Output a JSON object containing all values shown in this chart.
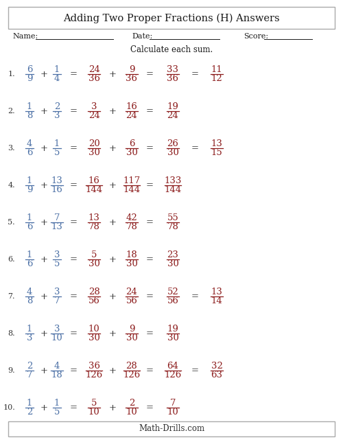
{
  "title": "Adding Two Proper Fractions (H) Answers",
  "footer": "Math-Drills.com",
  "name_label": "Name:",
  "date_label": "Date:",
  "score_label": "Score:",
  "instruction": "Calculate each sum.",
  "bg_color": "#ffffff",
  "blue_color": "#4a6fa5",
  "red_color": "#8b1a1a",
  "problems": [
    {
      "num": "1.",
      "f1n": "6",
      "f1d": "9",
      "f2n": "1",
      "f2d": "4",
      "e1n": "24",
      "e1d": "36",
      "e2n": "9",
      "e2d": "36",
      "sn": "33",
      "sd": "36",
      "rn": "11",
      "rd": "12",
      "has_reduced": true
    },
    {
      "num": "2.",
      "f1n": "1",
      "f1d": "8",
      "f2n": "2",
      "f2d": "3",
      "e1n": "3",
      "e1d": "24",
      "e2n": "16",
      "e2d": "24",
      "sn": "19",
      "sd": "24",
      "rn": "",
      "rd": "",
      "has_reduced": false
    },
    {
      "num": "3.",
      "f1n": "4",
      "f1d": "6",
      "f2n": "1",
      "f2d": "5",
      "e1n": "20",
      "e1d": "30",
      "e2n": "6",
      "e2d": "30",
      "sn": "26",
      "sd": "30",
      "rn": "13",
      "rd": "15",
      "has_reduced": true
    },
    {
      "num": "4.",
      "f1n": "1",
      "f1d": "9",
      "f2n": "13",
      "f2d": "16",
      "e1n": "16",
      "e1d": "144",
      "e2n": "117",
      "e2d": "144",
      "sn": "133",
      "sd": "144",
      "rn": "",
      "rd": "",
      "has_reduced": false
    },
    {
      "num": "5.",
      "f1n": "1",
      "f1d": "6",
      "f2n": "7",
      "f2d": "13",
      "e1n": "13",
      "e1d": "78",
      "e2n": "42",
      "e2d": "78",
      "sn": "55",
      "sd": "78",
      "rn": "",
      "rd": "",
      "has_reduced": false
    },
    {
      "num": "6.",
      "f1n": "1",
      "f1d": "6",
      "f2n": "3",
      "f2d": "5",
      "e1n": "5",
      "e1d": "30",
      "e2n": "18",
      "e2d": "30",
      "sn": "23",
      "sd": "30",
      "rn": "",
      "rd": "",
      "has_reduced": false
    },
    {
      "num": "7.",
      "f1n": "4",
      "f1d": "8",
      "f2n": "3",
      "f2d": "7",
      "e1n": "28",
      "e1d": "56",
      "e2n": "24",
      "e2d": "56",
      "sn": "52",
      "sd": "56",
      "rn": "13",
      "rd": "14",
      "has_reduced": true
    },
    {
      "num": "8.",
      "f1n": "1",
      "f1d": "3",
      "f2n": "3",
      "f2d": "10",
      "e1n": "10",
      "e1d": "30",
      "e2n": "9",
      "e2d": "30",
      "sn": "19",
      "sd": "30",
      "rn": "",
      "rd": "",
      "has_reduced": false
    },
    {
      "num": "9.",
      "f1n": "2",
      "f1d": "7",
      "f2n": "4",
      "f2d": "18",
      "e1n": "36",
      "e1d": "126",
      "e2n": "28",
      "e2d": "126",
      "sn": "64",
      "sd": "126",
      "rn": "32",
      "rd": "63",
      "has_reduced": true
    },
    {
      "num": "10.",
      "f1n": "1",
      "f1d": "2",
      "f2n": "1",
      "f2d": "5",
      "e1n": "5",
      "e1d": "10",
      "e2n": "2",
      "e2d": "10",
      "sn": "7",
      "sd": "10",
      "rn": "",
      "rd": "",
      "has_reduced": false
    }
  ]
}
